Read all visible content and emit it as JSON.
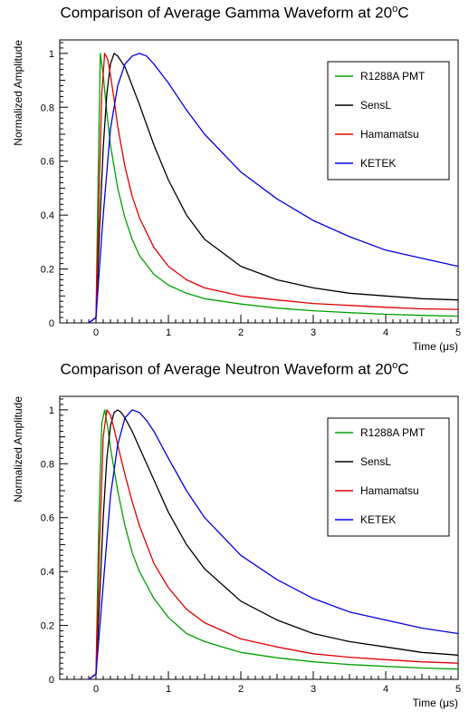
{
  "chart_data": [
    {
      "type": "line",
      "title_main": "Comparison of Average Gamma Waveform at 20",
      "title_sup": "o",
      "title_end": "C",
      "xlabel": "Time (μs)",
      "ylabel": "Normalized Amplitude",
      "xlim": [
        -0.5,
        5
      ],
      "ylim": [
        0,
        1.05
      ],
      "x_ticks": [
        0,
        1,
        2,
        3,
        4,
        5
      ],
      "y_ticks": [
        0,
        0.2,
        0.4,
        0.6,
        0.8,
        1
      ],
      "grid": false,
      "legend_position": "top-right",
      "series": [
        {
          "name": "R1288A PMT",
          "color": "#00a000",
          "x": [
            -0.1,
            0.0,
            0.04,
            0.06,
            0.1,
            0.15,
            0.2,
            0.3,
            0.4,
            0.5,
            0.6,
            0.8,
            1.0,
            1.25,
            1.5,
            2.0,
            2.5,
            3.0,
            3.5,
            4.0,
            4.5,
            5.0
          ],
          "y": [
            0.0,
            0.02,
            0.7,
            1.0,
            0.92,
            0.78,
            0.66,
            0.5,
            0.39,
            0.31,
            0.25,
            0.18,
            0.14,
            0.11,
            0.09,
            0.07,
            0.055,
            0.045,
            0.038,
            0.032,
            0.028,
            0.025
          ]
        },
        {
          "name": "SensL",
          "color": "#000000",
          "x": [
            -0.1,
            0.0,
            0.05,
            0.1,
            0.15,
            0.2,
            0.25,
            0.3,
            0.4,
            0.5,
            0.6,
            0.8,
            1.0,
            1.25,
            1.5,
            2.0,
            2.5,
            3.0,
            3.5,
            4.0,
            4.5,
            5.0
          ],
          "y": [
            0.0,
            0.02,
            0.35,
            0.65,
            0.85,
            0.96,
            1.0,
            0.99,
            0.95,
            0.88,
            0.81,
            0.66,
            0.53,
            0.4,
            0.31,
            0.21,
            0.16,
            0.13,
            0.11,
            0.1,
            0.09,
            0.085
          ]
        },
        {
          "name": "Hamamatsu",
          "color": "#e00000",
          "x": [
            -0.1,
            0.0,
            0.04,
            0.08,
            0.12,
            0.16,
            0.2,
            0.25,
            0.3,
            0.4,
            0.5,
            0.6,
            0.8,
            1.0,
            1.25,
            1.5,
            2.0,
            2.5,
            3.0,
            3.5,
            4.0,
            4.5,
            5.0
          ],
          "y": [
            0.0,
            0.02,
            0.45,
            0.85,
            1.0,
            0.98,
            0.92,
            0.83,
            0.73,
            0.58,
            0.47,
            0.39,
            0.28,
            0.21,
            0.16,
            0.13,
            0.1,
            0.085,
            0.072,
            0.065,
            0.058,
            0.052,
            0.05
          ]
        },
        {
          "name": "KETEK",
          "color": "#0000e0",
          "x": [
            -0.1,
            0.0,
            0.1,
            0.2,
            0.3,
            0.4,
            0.5,
            0.6,
            0.7,
            0.8,
            1.0,
            1.25,
            1.5,
            2.0,
            2.5,
            3.0,
            3.5,
            4.0,
            4.5,
            5.0
          ],
          "y": [
            0.0,
            0.02,
            0.4,
            0.72,
            0.88,
            0.96,
            0.99,
            1.0,
            0.99,
            0.96,
            0.89,
            0.79,
            0.7,
            0.56,
            0.46,
            0.38,
            0.32,
            0.27,
            0.24,
            0.21
          ]
        }
      ]
    },
    {
      "type": "line",
      "title_main": "Comparison of Average Neutron Waveform at 20",
      "title_sup": "o",
      "title_end": "C",
      "xlabel": "Time (μs)",
      "ylabel": "Normalized Amplitude",
      "xlim": [
        -0.5,
        5
      ],
      "ylim": [
        0,
        1.05
      ],
      "x_ticks": [
        0,
        1,
        2,
        3,
        4,
        5
      ],
      "y_ticks": [
        0,
        0.2,
        0.4,
        0.6,
        0.8,
        1
      ],
      "grid": false,
      "legend_position": "top-right",
      "series": [
        {
          "name": "R1288A PMT",
          "color": "#00a000",
          "x": [
            -0.1,
            0.0,
            0.04,
            0.08,
            0.12,
            0.16,
            0.2,
            0.3,
            0.4,
            0.5,
            0.6,
            0.8,
            1.0,
            1.25,
            1.5,
            2.0,
            2.5,
            3.0,
            3.5,
            4.0,
            4.5,
            5.0
          ],
          "y": [
            0.0,
            0.02,
            0.6,
            0.95,
            1.0,
            0.94,
            0.86,
            0.7,
            0.57,
            0.47,
            0.4,
            0.3,
            0.23,
            0.17,
            0.14,
            0.1,
            0.08,
            0.065,
            0.055,
            0.048,
            0.042,
            0.038
          ]
        },
        {
          "name": "SensL",
          "color": "#000000",
          "x": [
            -0.1,
            0.0,
            0.05,
            0.1,
            0.15,
            0.2,
            0.25,
            0.3,
            0.35,
            0.4,
            0.5,
            0.6,
            0.8,
            1.0,
            1.25,
            1.5,
            2.0,
            2.5,
            3.0,
            3.5,
            4.0,
            4.5,
            5.0
          ],
          "y": [
            0.0,
            0.02,
            0.3,
            0.6,
            0.82,
            0.94,
            0.99,
            1.0,
            0.99,
            0.97,
            0.92,
            0.86,
            0.74,
            0.62,
            0.5,
            0.41,
            0.29,
            0.22,
            0.17,
            0.14,
            0.12,
            0.1,
            0.09
          ]
        },
        {
          "name": "Hamamatsu",
          "color": "#e00000",
          "x": [
            -0.1,
            0.0,
            0.05,
            0.1,
            0.15,
            0.2,
            0.25,
            0.3,
            0.4,
            0.5,
            0.6,
            0.8,
            1.0,
            1.25,
            1.5,
            2.0,
            2.5,
            3.0,
            3.5,
            4.0,
            4.5,
            5.0
          ],
          "y": [
            0.0,
            0.02,
            0.5,
            0.9,
            1.0,
            0.98,
            0.93,
            0.87,
            0.76,
            0.66,
            0.57,
            0.43,
            0.34,
            0.26,
            0.21,
            0.15,
            0.12,
            0.095,
            0.082,
            0.073,
            0.065,
            0.06
          ]
        },
        {
          "name": "KETEK",
          "color": "#0000e0",
          "x": [
            -0.1,
            0.0,
            0.1,
            0.2,
            0.3,
            0.4,
            0.5,
            0.6,
            0.7,
            0.8,
            1.0,
            1.25,
            1.5,
            2.0,
            2.5,
            3.0,
            3.5,
            4.0,
            4.5,
            5.0
          ],
          "y": [
            0.0,
            0.02,
            0.35,
            0.68,
            0.87,
            0.97,
            1.0,
            0.99,
            0.96,
            0.92,
            0.82,
            0.7,
            0.6,
            0.46,
            0.37,
            0.3,
            0.25,
            0.22,
            0.19,
            0.17
          ]
        }
      ]
    }
  ]
}
